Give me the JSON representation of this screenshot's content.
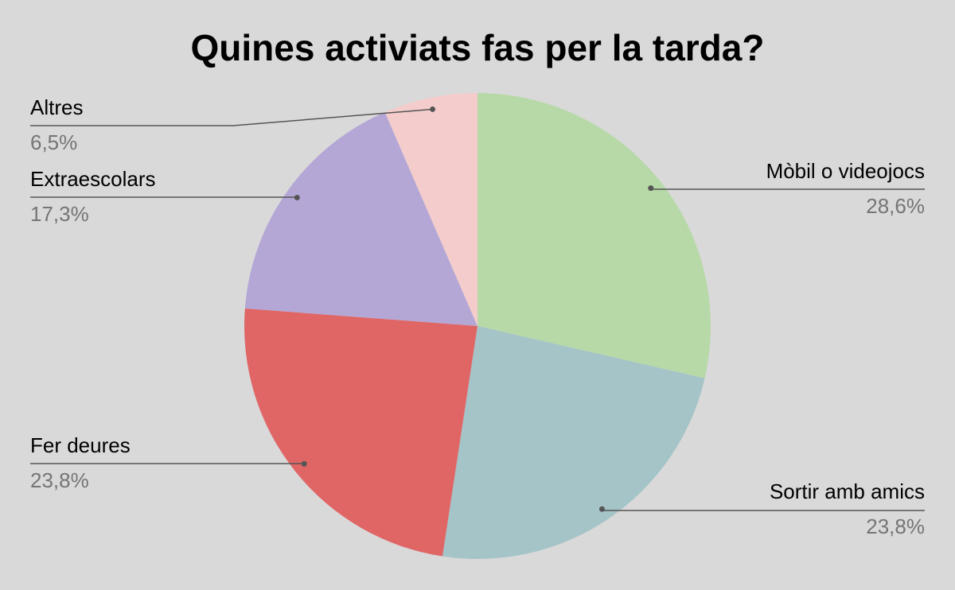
{
  "chart_data": {
    "type": "pie",
    "title": "Quines activiats fas per la tarda?",
    "categories": [
      "Mòbil o videojocs",
      "Sortir amb amics",
      "Fer deures",
      "Extraescolars",
      "Altres"
    ],
    "values": [
      28.6,
      23.8,
      23.8,
      17.3,
      6.5
    ],
    "value_labels": [
      "28,6%",
      "23,8%",
      "23,8%",
      "17,3%",
      "6,5%"
    ],
    "colors": [
      "#b7d9a8",
      "#a5c4c8",
      "#e06666",
      "#b4a7d6",
      "#f4cccc"
    ]
  }
}
